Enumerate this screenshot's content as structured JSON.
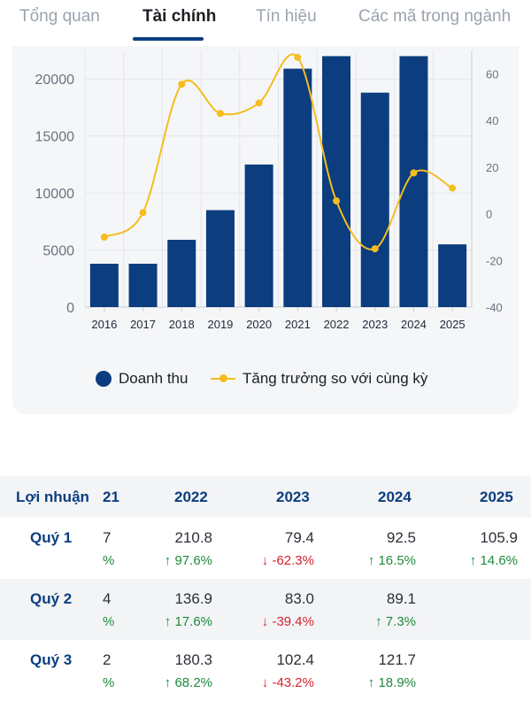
{
  "tabs": {
    "items": [
      "Tổng quan",
      "Tài chính",
      "Tín hiệu",
      "Các mã trong ngành"
    ],
    "active": "Tài chính"
  },
  "colors": {
    "bar": "#0b3d7f",
    "line": "#f5bd1f",
    "up": "#1e8a3c",
    "down": "#d3222e",
    "accent": "#0b3d7f"
  },
  "chart_data": {
    "type": "bar",
    "categories": [
      "2016",
      "2017",
      "2018",
      "2019",
      "2020",
      "2021",
      "2022",
      "2023",
      "2024",
      "2025"
    ],
    "series": [
      {
        "name": "Doanh thu",
        "type": "bar",
        "axis": "left",
        "values": [
          3800,
          3800,
          5900,
          8500,
          12500,
          20900,
          22000,
          18800,
          22000,
          5500
        ]
      },
      {
        "name": "Tăng trưởng so với cùng kỳ",
        "type": "line",
        "axis": "right",
        "values": [
          -10,
          0.5,
          55.5,
          43,
          47.5,
          67,
          5.5,
          -15,
          17.5,
          11
        ]
      }
    ],
    "ylim_left": [
      0,
      22500
    ],
    "yticks_left": [
      "0",
      "5000",
      "10000",
      "15000",
      "20000"
    ],
    "ylim_right": [
      -40,
      70
    ],
    "yticks_right": [
      "-40",
      "-20",
      "0",
      "20",
      "40",
      "60"
    ],
    "grid": true,
    "legend_placement": "bottom"
  },
  "legend": {
    "bar_label": "Doanh thu",
    "line_label": "Tăng trưởng so với cùng kỳ"
  },
  "table": {
    "header_label": "Lợi nhuận",
    "partial_col_header": "21",
    "columns": [
      "2022",
      "2023",
      "2024",
      "2025"
    ],
    "rows": [
      {
        "label": "Quý 1",
        "partial_value": "7",
        "partial_pct": "%",
        "values": [
          "210.8",
          "79.4",
          "92.5",
          "105.9"
        ],
        "pcts": [
          "97.6%",
          "-62.3%",
          "16.5%",
          "14.6%"
        ],
        "dirs": [
          "up",
          "down",
          "up",
          "up"
        ]
      },
      {
        "label": "Quý 2",
        "partial_value": "4",
        "partial_pct": "%",
        "values": [
          "136.9",
          "83.0",
          "89.1",
          ""
        ],
        "pcts": [
          "17.6%",
          "-39.4%",
          "7.3%",
          ""
        ],
        "dirs": [
          "up",
          "down",
          "up",
          ""
        ]
      },
      {
        "label": "Quý 3",
        "partial_value": "2",
        "partial_pct": "%",
        "values": [
          "180.3",
          "102.4",
          "121.7",
          ""
        ],
        "pcts": [
          "68.2%",
          "-43.2%",
          "18.9%",
          ""
        ],
        "dirs": [
          "up",
          "down",
          "up",
          ""
        ]
      }
    ]
  }
}
